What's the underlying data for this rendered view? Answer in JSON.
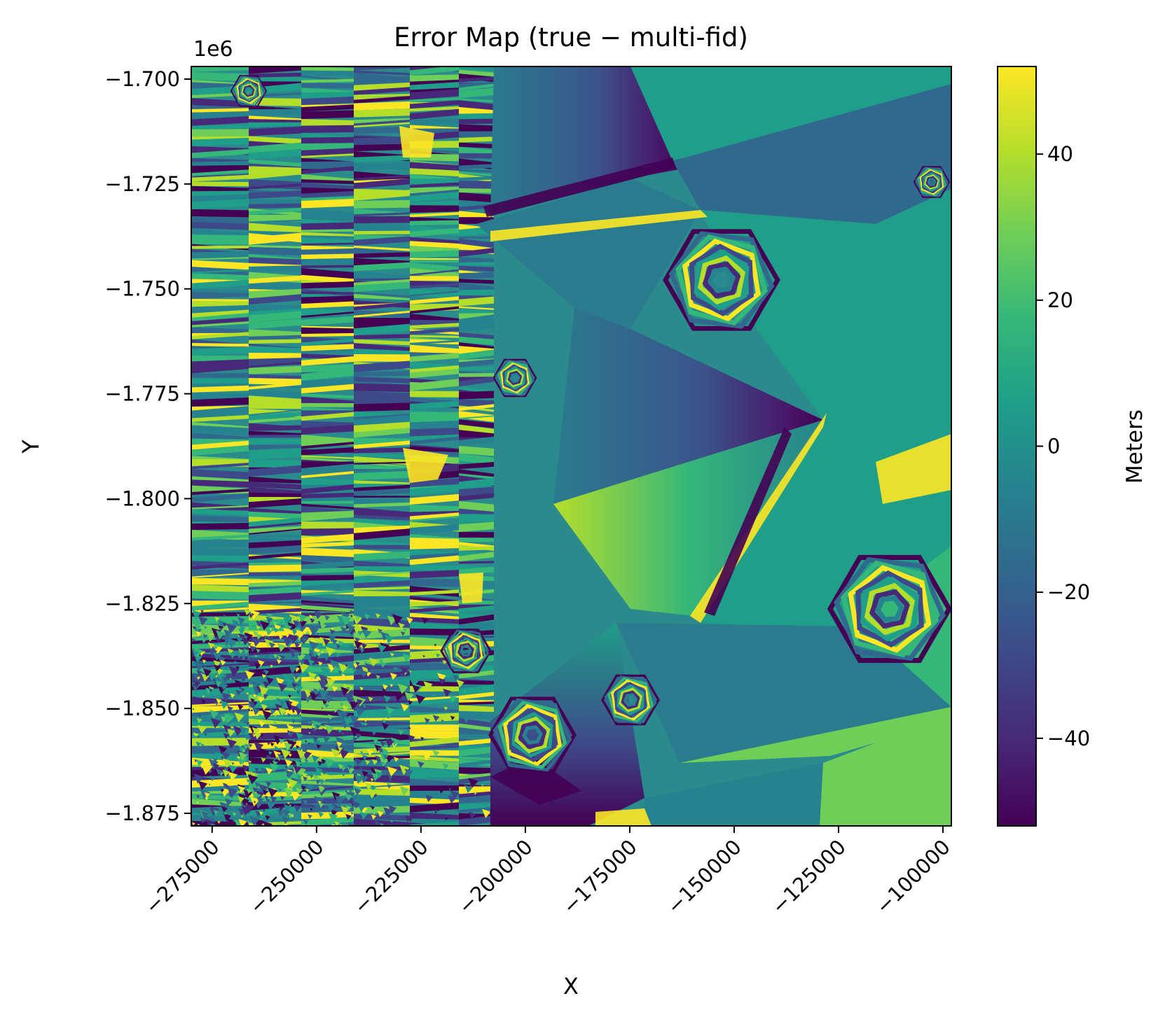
{
  "chart_data": {
    "type": "heatmap",
    "title": "Error Map (true − multi-fid)",
    "xlabel": "X",
    "ylabel": "Y",
    "y_offset_label": "1e6",
    "xlim": [
      -280000,
      -98000
    ],
    "ylim": [
      -1.878,
      -1.697
    ],
    "x_ticks": [
      -275000,
      -250000,
      -225000,
      -200000,
      -175000,
      -150000,
      -125000,
      -100000
    ],
    "x_tick_labels": [
      "−275000",
      "−250000",
      "−225000",
      "−200000",
      "−175000",
      "−150000",
      "−125000",
      "−100000"
    ],
    "y_ticks": [
      -1.7,
      -1.725,
      -1.75,
      -1.775,
      -1.8,
      -1.825,
      -1.85,
      -1.875
    ],
    "y_tick_labels": [
      "−1.700",
      "−1.725",
      "−1.750",
      "−1.775",
      "−1.800",
      "−1.825",
      "−1.850",
      "−1.875"
    ],
    "colorbar": {
      "label": "Meters",
      "colormap": "viridis",
      "range": [
        -52,
        52
      ],
      "ticks": [
        40,
        20,
        0,
        -20,
        -40
      ],
      "tick_labels": [
        "40",
        "20",
        "0",
        "−20",
        "−40"
      ]
    },
    "colormap_stops": [
      "#440154",
      "#482878",
      "#3e4989",
      "#31688e",
      "#26828e",
      "#1f9e89",
      "#35b779",
      "#6ece58",
      "#b5de2b",
      "#fde725"
    ]
  }
}
